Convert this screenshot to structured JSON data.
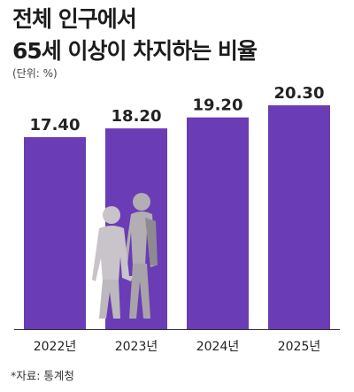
{
  "title_line1": "전체 인구에서",
  "title_line2": "65세 이상이 차지하는 비율",
  "unit": "(단위: %)",
  "source": "*자료: 통계청",
  "colors": {
    "bar": "#6a3cb5",
    "axis": "#333333",
    "figure_light": "#c9c4c9",
    "figure_dark": "#b3aeb3"
  },
  "chart_data": {
    "type": "bar",
    "categories": [
      "2022년",
      "2023년",
      "2024년",
      "2025년"
    ],
    "values": [
      17.4,
      18.2,
      19.2,
      20.3
    ],
    "value_labels": [
      "17.40",
      "18.20",
      "19.20",
      "20.30"
    ],
    "title": "전체 인구에서 65세 이상이 차지하는 비율",
    "ylabel": "(단위: %)",
    "grid": false
  }
}
